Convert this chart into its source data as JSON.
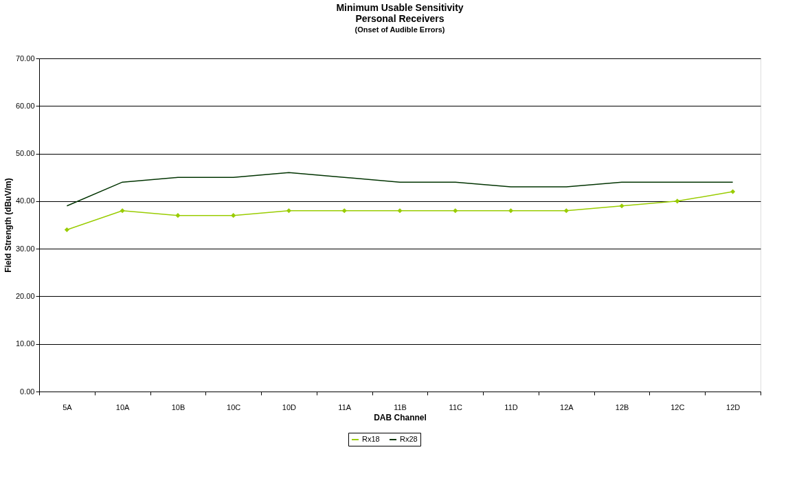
{
  "chart_data": {
    "type": "line",
    "title": "Minimum Usable Sensitivity\nPersonal Receivers",
    "subtitle": "(Onset of Audible Errors)",
    "xlabel": "DAB Channel",
    "ylabel": "Field Strength (dBuV/m)",
    "categories": [
      "5A",
      "10A",
      "10B",
      "10C",
      "10D",
      "11A",
      "11B",
      "11C",
      "11D",
      "12A",
      "12B",
      "12C",
      "12D"
    ],
    "series": [
      {
        "name": "Rx18",
        "color": "#99cc00",
        "marker": "diamond",
        "values": [
          34,
          38,
          37,
          37,
          38,
          38,
          38,
          38,
          38,
          38,
          39,
          40,
          42
        ]
      },
      {
        "name": "Rx28",
        "color": "#003300",
        "marker": "none",
        "values": [
          39,
          44,
          45,
          45,
          46,
          45,
          44,
          44,
          43,
          43,
          44,
          44,
          44
        ]
      }
    ],
    "ylim": [
      0,
      70
    ],
    "yticks": [
      {
        "value": 0,
        "label": "0.00"
      },
      {
        "value": 10,
        "label": "10.00"
      },
      {
        "value": 20,
        "label": "20.00"
      },
      {
        "value": 30,
        "label": "30.00"
      },
      {
        "value": 40,
        "label": "40.00"
      },
      {
        "value": 50,
        "label": "50.00"
      },
      {
        "value": 60,
        "label": "60.00"
      },
      {
        "value": 70,
        "label": "70.00"
      }
    ],
    "grid": "y",
    "legend": "bottom",
    "line_style": "solid"
  }
}
